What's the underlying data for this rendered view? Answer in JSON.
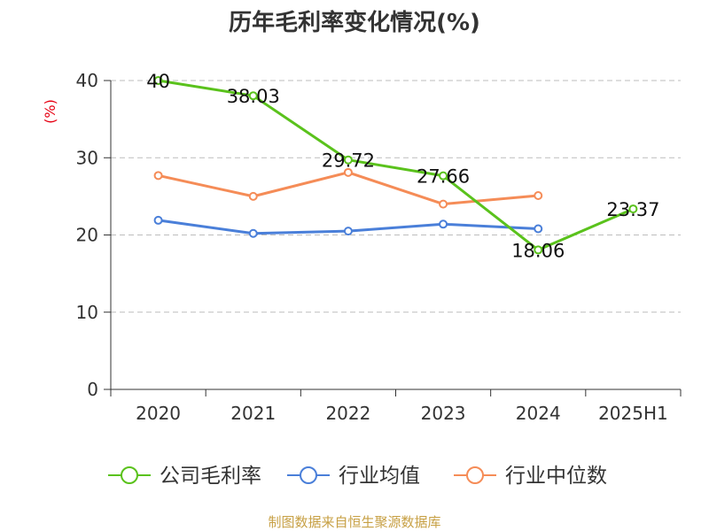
{
  "chart_data": {
    "type": "line",
    "title": "历年毛利率变化情况(%)",
    "ylabel": "(%)",
    "xlabel": "",
    "categories": [
      "2020",
      "2021",
      "2022",
      "2023",
      "2024",
      "2025H1"
    ],
    "ylim": [
      0,
      40
    ],
    "yticks": [
      "0",
      "10",
      "20",
      "30",
      "40"
    ],
    "grid": true,
    "legend_position": "bottom",
    "series": [
      {
        "name": "公司毛利率",
        "color": "#5ac21c",
        "values": [
          40,
          38.03,
          29.72,
          27.66,
          18.06,
          23.37
        ],
        "labels": [
          "40",
          "38.03",
          "29.72",
          "27.66",
          "18.06",
          "23.37"
        ]
      },
      {
        "name": "行业均值",
        "color": "#4a7fd9",
        "values": [
          21.9,
          20.2,
          20.5,
          21.4,
          20.8,
          null
        ]
      },
      {
        "name": "行业中位数",
        "color": "#f58c57",
        "values": [
          27.7,
          25.0,
          28.1,
          24.0,
          25.1,
          null
        ]
      }
    ]
  },
  "footer": {
    "source": "制图数据来自恒生聚源数据库"
  }
}
